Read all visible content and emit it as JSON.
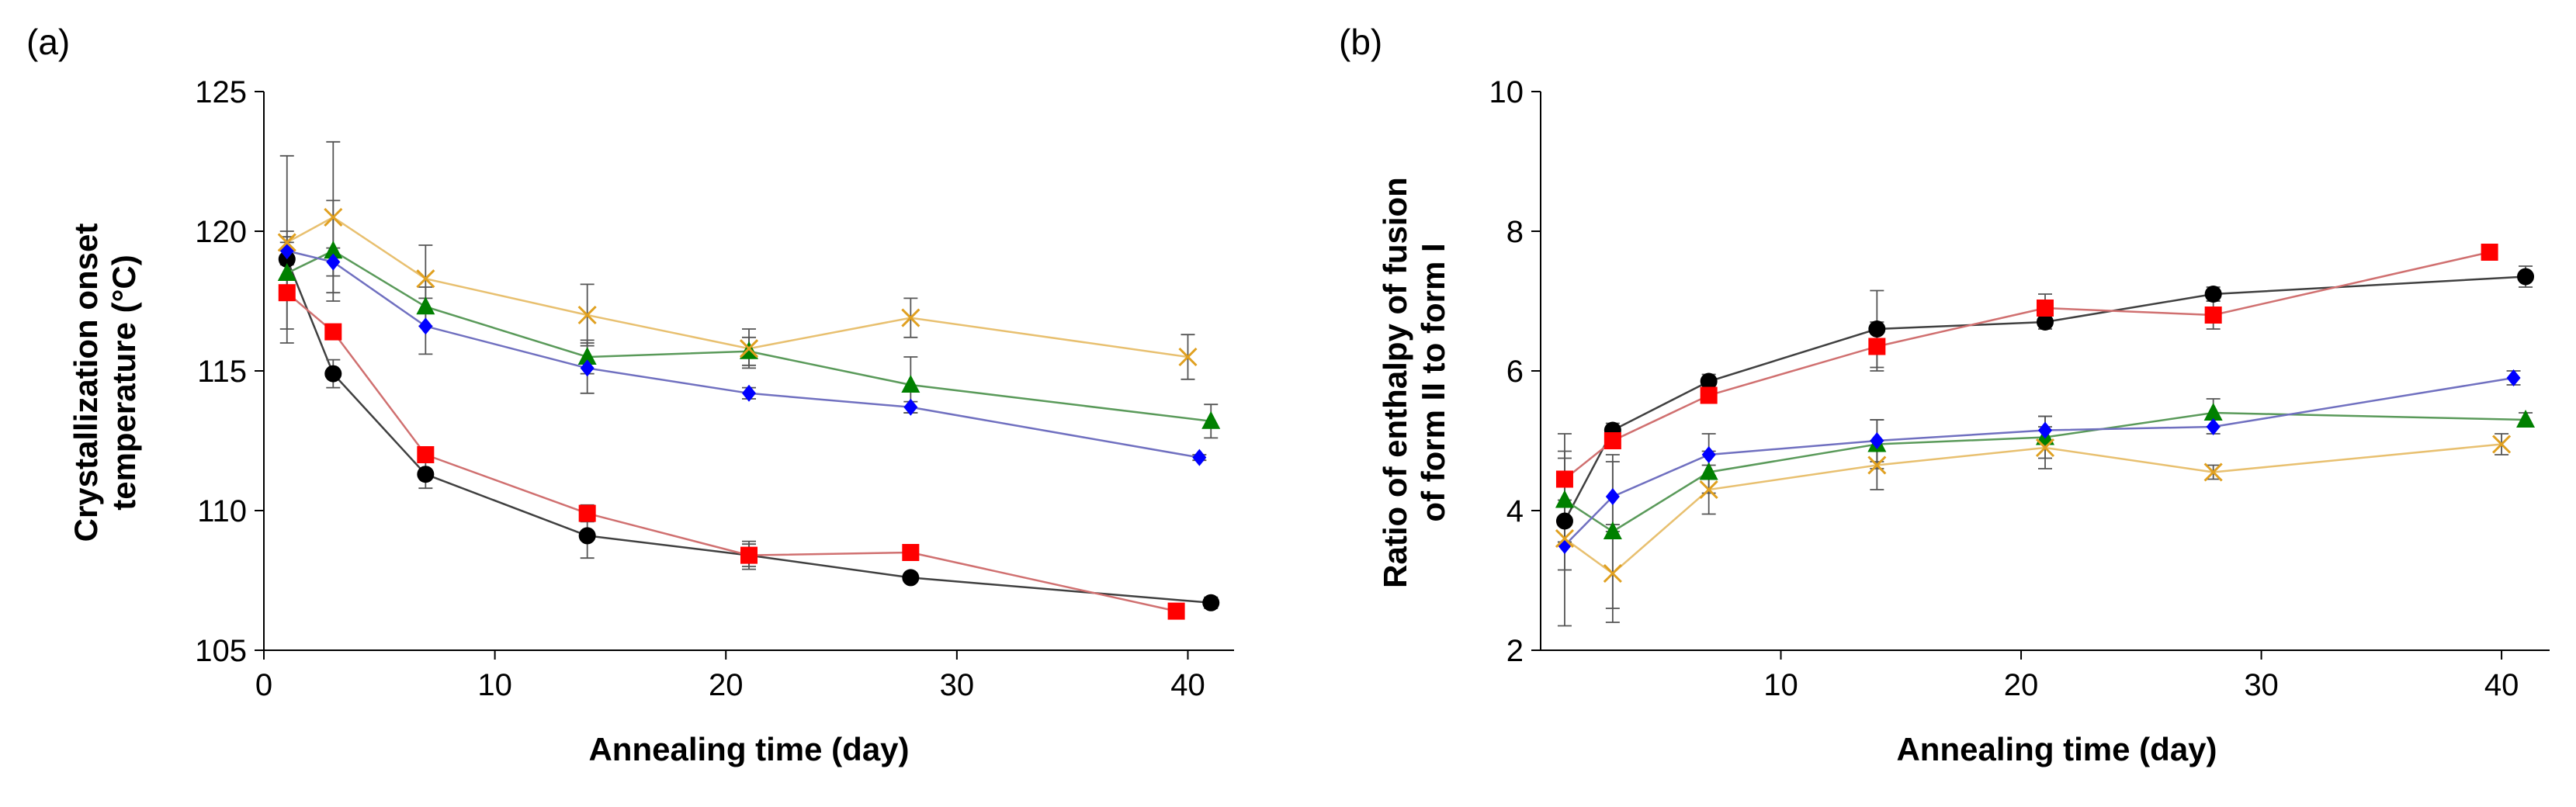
{
  "chart_data": [
    {
      "type": "scatter",
      "panel_label": "(a)",
      "title": "",
      "xlabel": "Annealing time (day)",
      "ylabel": [
        "Crystallization onset",
        "temperature (°C)"
      ],
      "xlim": [
        0,
        42
      ],
      "ylim": [
        105,
        125
      ],
      "xticks": [
        0,
        10,
        20,
        30,
        40
      ],
      "yticks": [
        105,
        110,
        115,
        120,
        125
      ],
      "grid": false,
      "series": [
        {
          "marker": "circle",
          "color": "#000000",
          "line_color": "#404040",
          "points": [
            [
              1,
              119.0
            ],
            [
              3,
              114.9
            ],
            [
              7,
              111.3
            ],
            [
              14,
              109.1
            ],
            [
              21,
              108.4
            ],
            [
              28,
              107.6
            ],
            [
              41,
              106.7
            ]
          ],
          "errors": [
            1.0,
            0.5,
            0.5,
            0.8,
            0.4,
            0.1,
            0.2
          ]
        },
        {
          "marker": "square",
          "color": "#ff0000",
          "line_color": "#d07070",
          "points": [
            [
              1,
              117.8
            ],
            [
              3,
              116.4
            ],
            [
              7,
              112.0
            ],
            [
              14,
              109.9
            ],
            [
              21,
              108.4
            ],
            [
              28,
              108.5
            ],
            [
              39.5,
              106.4
            ]
          ],
          "errors": [
            1.8,
            0.2,
            0.2,
            0.3,
            0.5,
            0.2,
            0.1
          ]
        },
        {
          "marker": "triangle",
          "color": "#008000",
          "line_color": "#5a9a5a",
          "points": [
            [
              1,
              118.5
            ],
            [
              3,
              119.3
            ],
            [
              7,
              117.3
            ],
            [
              14,
              115.5
            ],
            [
              21,
              115.7
            ],
            [
              28,
              114.5
            ],
            [
              41,
              113.2
            ]
          ],
          "errors": [
            0.8,
            1.8,
            0.7,
            0.6,
            0.5,
            1.0,
            0.6
          ]
        },
        {
          "marker": "diamond",
          "color": "#0000ff",
          "line_color": "#7070c0",
          "points": [
            [
              1,
              119.3
            ],
            [
              3,
              118.9
            ],
            [
              7,
              116.6
            ],
            [
              14,
              115.1
            ],
            [
              21,
              114.2
            ],
            [
              28,
              113.7
            ],
            [
              40.5,
              111.9
            ]
          ],
          "errors": [
            0.5,
            0.5,
            1.0,
            0.9,
            0.2,
            0.2,
            0.1
          ]
        },
        {
          "marker": "x",
          "color": "#e0a020",
          "line_color": "#e8c070",
          "points": [
            [
              1,
              119.6
            ],
            [
              3,
              120.5
            ],
            [
              7,
              118.3
            ],
            [
              14,
              117.0
            ],
            [
              21,
              115.8
            ],
            [
              28,
              116.9
            ],
            [
              40,
              115.5
            ]
          ],
          "errors": [
            3.1,
            2.7,
            1.2,
            1.1,
            0.7,
            0.7,
            0.8
          ]
        }
      ]
    },
    {
      "type": "scatter",
      "panel_label": "(b)",
      "title": "",
      "xlabel": "Annealing time (day)",
      "ylabel": [
        "Ratio of enthalpy of fusion",
        "of form II to form I"
      ],
      "xlim": [
        0,
        42
      ],
      "ylim": [
        2,
        10
      ],
      "xticks": [
        10,
        20,
        30,
        40
      ],
      "yticks": [
        2,
        4,
        6,
        8,
        10
      ],
      "grid": false,
      "series": [
        {
          "marker": "circle",
          "color": "#000000",
          "line_color": "#404040",
          "points": [
            [
              1,
              3.85
            ],
            [
              3,
              5.15
            ],
            [
              7,
              5.85
            ],
            [
              14,
              6.6
            ],
            [
              21,
              6.7
            ],
            [
              28,
              7.1
            ],
            [
              41,
              7.35
            ]
          ],
          "errors": [
            0.3,
            0.1,
            0.1,
            0.55,
            0.1,
            0.1,
            0.15
          ]
        },
        {
          "marker": "square",
          "color": "#ff0000",
          "line_color": "#d07070",
          "points": [
            [
              1,
              4.45
            ],
            [
              3,
              5.0
            ],
            [
              7,
              5.65
            ],
            [
              14,
              6.35
            ],
            [
              21,
              6.9
            ],
            [
              28,
              6.8
            ],
            [
              39.5,
              7.7
            ]
          ],
          "errors": [
            0.65,
            0.1,
            0.1,
            0.35,
            0.2,
            0.2,
            0.1
          ]
        },
        {
          "marker": "triangle",
          "color": "#008000",
          "line_color": "#5a9a5a",
          "points": [
            [
              1,
              4.15
            ],
            [
              3,
              3.7
            ],
            [
              7,
              4.55
            ],
            [
              14,
              4.95
            ],
            [
              21,
              5.05
            ],
            [
              28,
              5.4
            ],
            [
              41,
              5.3
            ]
          ],
          "errors": [
            0.6,
            1.1,
            0.3,
            0.35,
            0.3,
            0.2,
            0.1
          ]
        },
        {
          "marker": "diamond",
          "color": "#0000ff",
          "line_color": "#7070c0",
          "points": [
            [
              1,
              3.5
            ],
            [
              3,
              4.2
            ],
            [
              7,
              4.8
            ],
            [
              14,
              5.0
            ],
            [
              21,
              5.15
            ],
            [
              28,
              5.2
            ],
            [
              40.5,
              5.9
            ]
          ],
          "errors": [
            0.35,
            0.5,
            0.3,
            0.3,
            0.2,
            0.1,
            0.1
          ]
        },
        {
          "marker": "x",
          "color": "#e0a020",
          "line_color": "#e8c070",
          "points": [
            [
              1,
              3.6
            ],
            [
              3,
              3.1
            ],
            [
              7,
              4.3
            ],
            [
              14,
              4.65
            ],
            [
              21,
              4.9
            ],
            [
              28,
              4.55
            ],
            [
              40,
              4.95
            ]
          ],
          "errors": [
            1.25,
            0.7,
            0.35,
            0.35,
            0.3,
            0.1,
            0.15
          ]
        }
      ]
    }
  ]
}
